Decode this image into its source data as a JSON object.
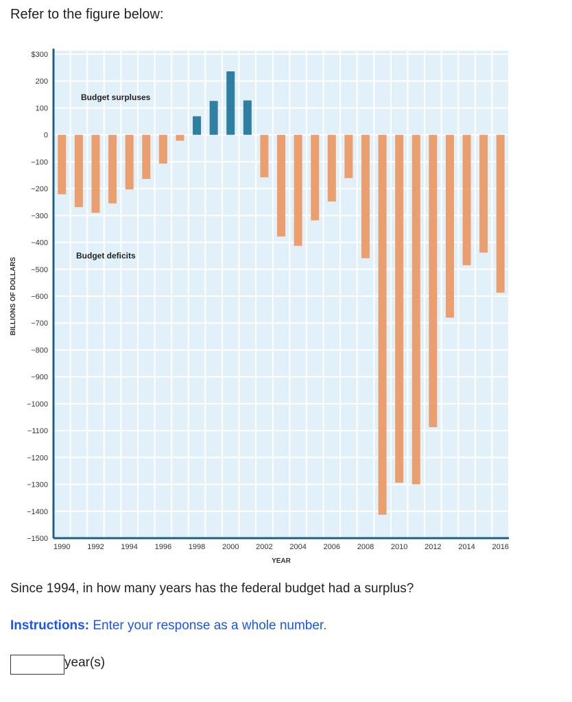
{
  "prompt": "Refer to the figure below:",
  "question": "Since 1994, in how many years has the federal budget had a surplus?",
  "instructions": {
    "label": "Instructions:",
    "text": " Enter your response as a whole number."
  },
  "answer": {
    "value": "",
    "unit": "year(s)"
  },
  "chart_data": {
    "type": "bar",
    "title": "",
    "xlabel": "YEAR",
    "ylabel": "BILLIONS OF DOLLARS",
    "ylim": [
      -1500,
      300
    ],
    "yticks": [
      300,
      200,
      100,
      0,
      -100,
      -200,
      -300,
      -400,
      -500,
      -600,
      -700,
      -800,
      -900,
      -1000,
      -1100,
      -1200,
      -1300,
      -1400,
      -1500
    ],
    "ytick_labels": [
      "$300",
      "200",
      "100",
      "0",
      "−100",
      "−200",
      "−300",
      "−400",
      "−500",
      "−600",
      "−700",
      "−800",
      "−900",
      "−1000",
      "−1100",
      "−1200",
      "−1300",
      "−1400",
      "−1500"
    ],
    "xtick_labels": [
      "1990",
      "1992",
      "1994",
      "1996",
      "1998",
      "2000",
      "2002",
      "2004",
      "2006",
      "2008",
      "2010",
      "2012",
      "2014",
      "2016"
    ],
    "grid": true,
    "categories": [
      1990,
      1991,
      1992,
      1993,
      1994,
      1995,
      1996,
      1997,
      1998,
      1999,
      2000,
      2001,
      2002,
      2003,
      2004,
      2005,
      2006,
      2007,
      2008,
      2009,
      2010,
      2011,
      2012,
      2013,
      2014,
      2015,
      2016
    ],
    "values": [
      -221,
      -269,
      -290,
      -255,
      -203,
      -164,
      -107,
      -22,
      69,
      126,
      236,
      128,
      -158,
      -378,
      -413,
      -318,
      -248,
      -161,
      -459,
      -1413,
      -1294,
      -1300,
      -1087,
      -680,
      -485,
      -438,
      -587
    ],
    "annotations": [
      "Budget surpluses",
      "Budget deficits"
    ],
    "colors": {
      "surplus": "#2f7fa3",
      "deficit": "#ec9f6e",
      "plot_bg": "#e2f0fa",
      "axis": "#1f5f86"
    }
  }
}
